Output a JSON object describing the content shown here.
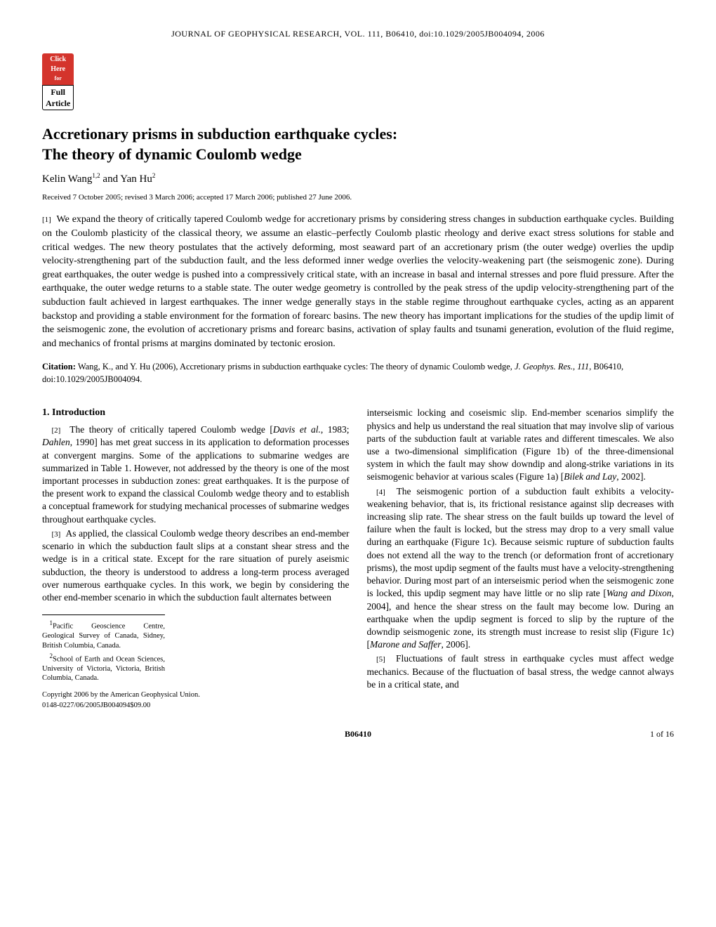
{
  "header": {
    "journal_line": "JOURNAL OF GEOPHYSICAL RESEARCH, VOL. 111, B06410, doi:10.1029/2005JB004094, 2006"
  },
  "badge": {
    "top_line1": "Click",
    "top_line2": "Here",
    "top_line3": "for",
    "bottom_line1": "Full",
    "bottom_line2": "Article"
  },
  "title_line1": "Accretionary prisms in subduction earthquake cycles:",
  "title_line2": "The theory of dynamic Coulomb wedge",
  "authors": "Kelin Wang",
  "author_sup1": "1,2",
  "authors_and": " and Yan Hu",
  "author_sup2": "2",
  "received": "Received 7 October 2005; revised 3 March 2006; accepted 17 March 2006; published 27 June 2006.",
  "abstract": {
    "num": "[1]",
    "text": "We expand the theory of critically tapered Coulomb wedge for accretionary prisms by considering stress changes in subduction earthquake cycles. Building on the Coulomb plasticity of the classical theory, we assume an elastic–perfectly Coulomb plastic rheology and derive exact stress solutions for stable and critical wedges. The new theory postulates that the actively deforming, most seaward part of an accretionary prism (the outer wedge) overlies the updip velocity-strengthening part of the subduction fault, and the less deformed inner wedge overlies the velocity-weakening part (the seismogenic zone). During great earthquakes, the outer wedge is pushed into a compressively critical state, with an increase in basal and internal stresses and pore fluid pressure. After the earthquake, the outer wedge returns to a stable state. The outer wedge geometry is controlled by the peak stress of the updip velocity-strengthening part of the subduction fault achieved in largest earthquakes. The inner wedge generally stays in the stable regime throughout earthquake cycles, acting as an apparent backstop and providing a stable environment for the formation of forearc basins. The new theory has important implications for the studies of the updip limit of the seismogenic zone, the evolution of accretionary prisms and forearc basins, activation of splay faults and tsunami generation, evolution of the fluid regime, and mechanics of frontal prisms at margins dominated by tectonic erosion."
  },
  "citation": {
    "label": "Citation:",
    "text_before_italic": " Wang, K., and Y. Hu (2006), Accretionary prisms in subduction earthquake cycles: The theory of dynamic Coulomb wedge, ",
    "italic": "J. Geophys. Res.",
    "after_italic1": ", ",
    "vol": "111",
    "after_vol": ", B06410, doi:10.1029/2005JB004094."
  },
  "left_col": {
    "section": "1.   Introduction",
    "p2_num": "[2]",
    "p2_a": "The theory of critically tapered Coulomb wedge [",
    "p2_i1": "Davis et al.",
    "p2_b": ", 1983; ",
    "p2_i2": "Dahlen",
    "p2_c": ", 1990] has met great success in its application to deformation processes at convergent margins. Some of the applications to submarine wedges are summarized in Table 1. However, not addressed by the theory is one of the most important processes in subduction zones: great earthquakes. It is the purpose of the present work to expand the classical Coulomb wedge theory and to establish a conceptual framework for studying mechanical processes of submarine wedges throughout earthquake cycles.",
    "p3_num": "[3]",
    "p3": "As applied, the classical Coulomb wedge theory describes an end-member scenario in which the subduction fault slips at a constant shear stress and the wedge is in a critical state. Except for the rare situation of purely aseismic subduction, the theory is understood to address a long-term process averaged over numerous earthquake cycles. In this work, we begin by considering the other end-member scenario in which the subduction fault alternates between"
  },
  "right_col": {
    "p3_cont_a": "interseismic locking and coseismic slip. End-member scenarios simplify the physics and help us understand the real situation that may involve slip of various parts of the subduction fault at variable rates and different timescales. We also use a two-dimensional simplification (Figure 1b) of the three-dimensional system in which the fault may show downdip and along-strike variations in its seismogenic behavior at various scales (Figure 1a) [",
    "p3_cont_i": "Bilek and Lay",
    "p3_cont_b": ", 2002].",
    "p4_num": "[4]",
    "p4_a": "The seismogenic portion of a subduction fault exhibits a velocity-weakening behavior, that is, its frictional resistance against slip decreases with increasing slip rate. The shear stress on the fault builds up toward the level of failure when the fault is locked, but the stress may drop to a very small value during an earthquake (Figure 1c). Because seismic rupture of subduction faults does not extend all the way to the trench (or deformation front of accretionary prisms), the most updip segment of the faults must have a velocity-strengthening behavior. During most part of an interseismic period when the seismogenic zone is locked, this updip segment may have little or no slip rate [",
    "p4_i1": "Wang and Dixon",
    "p4_b": ", 2004], and hence the shear stress on the fault may become low. During an earthquake when the updip segment is forced to slip by the rupture of the downdip seismogenic zone, its strength must increase to resist slip (Figure 1c) [",
    "p4_i2": "Marone and Saffer",
    "p4_c": ", 2006].",
    "p5_num": "[5]",
    "p5": "Fluctuations of fault stress in earthquake cycles must affect wedge mechanics. Because of the fluctuation of basal stress, the wedge cannot always be in a critical state, and"
  },
  "footnotes": {
    "f1_sup": "1",
    "f1": "Pacific Geoscience Centre, Geological Survey of Canada, Sidney, British Columbia, Canada.",
    "f2_sup": "2",
    "f2": "School of Earth and Ocean Sciences, University of Victoria, Victoria, British Columbia, Canada."
  },
  "copyright": {
    "line1": "Copyright 2006 by the American Geophysical Union.",
    "line2": "0148-0227/06/2005JB004094$09.00"
  },
  "footer": {
    "page_id": "B06410",
    "page_num": "1 of 16"
  }
}
